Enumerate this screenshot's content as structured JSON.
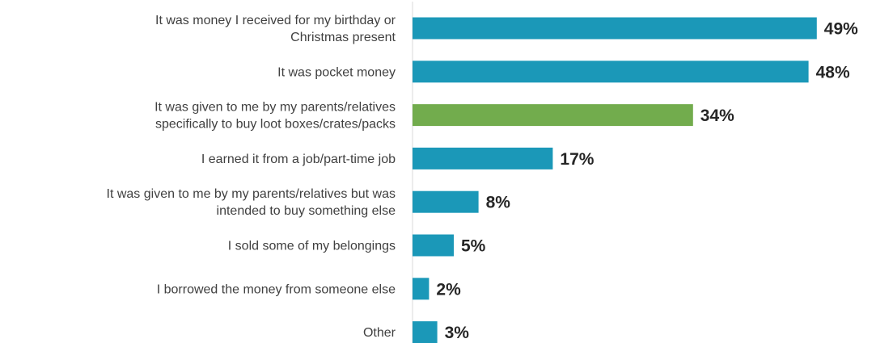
{
  "chart_data": {
    "type": "bar",
    "orientation": "horizontal",
    "title": "",
    "xlabel": "",
    "ylabel": "",
    "xlim": [
      0,
      50
    ],
    "grid": false,
    "legend": "none",
    "unit": "%",
    "categories": [
      [
        "It was money I received for my birthday or",
        "Christmas present"
      ],
      [
        "It was pocket money"
      ],
      [
        "It was given to me by my parents/relatives",
        "specifically to buy loot boxes/crates/packs"
      ],
      [
        "I earned it from a job/part-time job"
      ],
      [
        "It was given to me by my parents/relatives but was",
        "intended to buy something else"
      ],
      [
        "I sold some of my belongings"
      ],
      [
        "I borrowed the money from someone else"
      ],
      [
        "Other"
      ]
    ],
    "values": [
      49,
      48,
      34,
      17,
      8,
      5,
      2,
      3
    ],
    "value_labels": [
      "49%",
      "48%",
      "34%",
      "17%",
      "8%",
      "5%",
      "2%",
      "3%"
    ],
    "colors": [
      "#1b98b8",
      "#1b98b8",
      "#72ac4d",
      "#1b98b8",
      "#1b98b8",
      "#1b98b8",
      "#1b98b8",
      "#1b98b8"
    ]
  }
}
